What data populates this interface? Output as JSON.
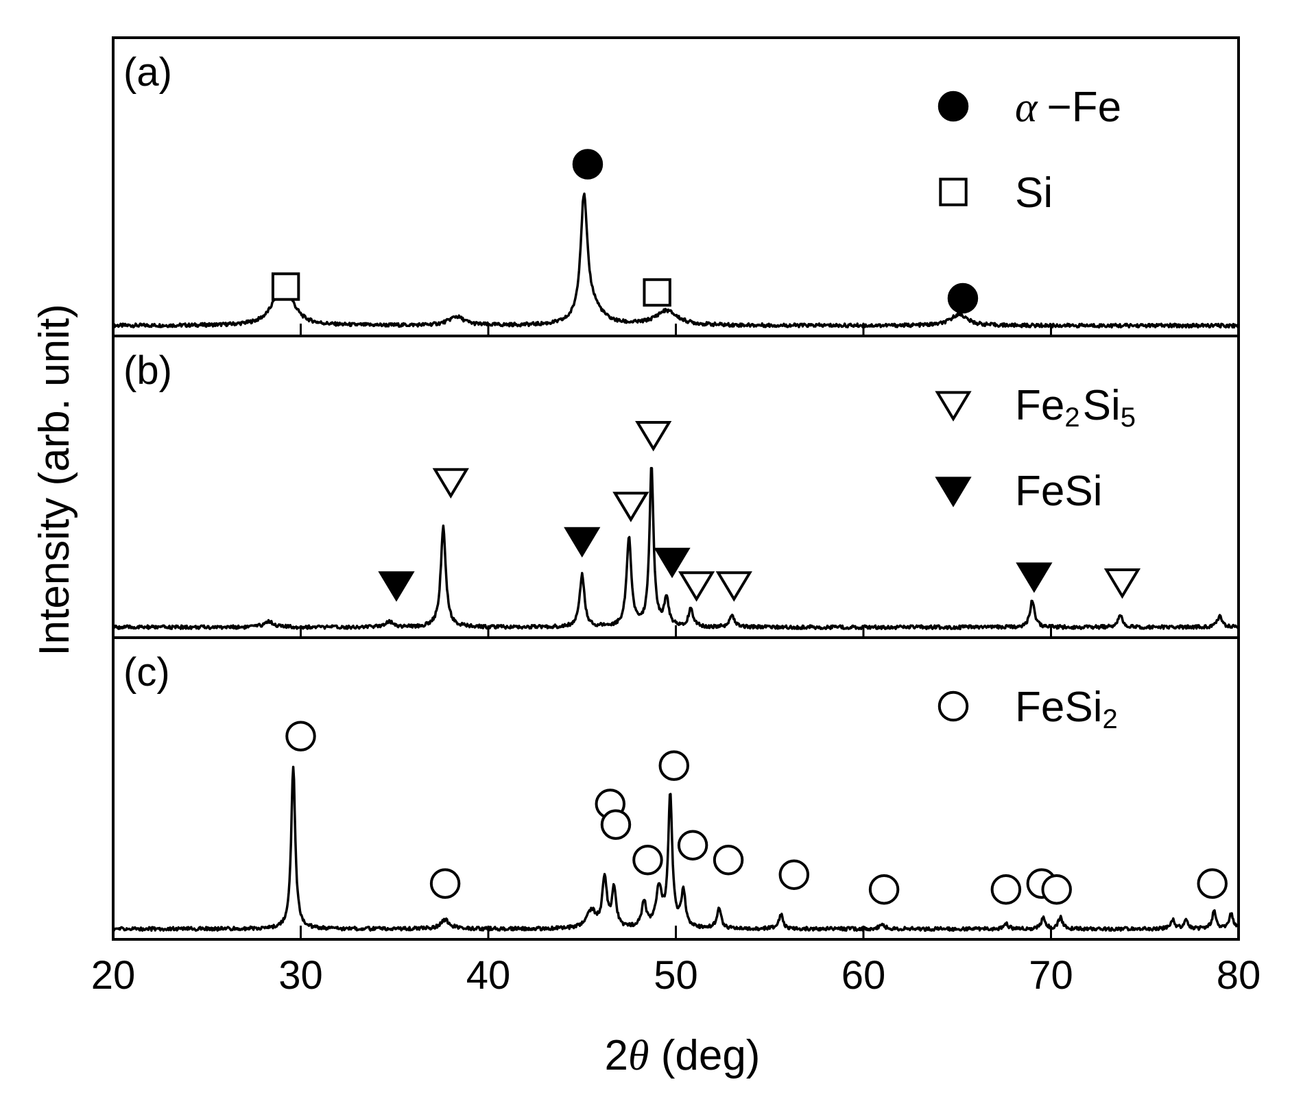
{
  "chart_data": {
    "type": "line",
    "title": "",
    "xlabel_prefix": "2",
    "xlabel_symbol": "θ",
    "xlabel_suffix": " (deg)",
    "ylabel": "Intensity (arb. unit)",
    "xlim": [
      20,
      80
    ],
    "xticks": [
      20,
      30,
      40,
      50,
      60,
      70,
      80
    ],
    "tick_labels": [
      "20",
      "30",
      "40",
      "50",
      "60",
      "70",
      "80"
    ],
    "ylim": [
      0,
      100
    ],
    "grid": false,
    "panels": [
      {
        "id": "a",
        "label": "(a)",
        "baseline": 2,
        "peaks": [
          {
            "x": 28.9,
            "h": 10,
            "w": 0.55
          },
          {
            "x": 29.4,
            "h": 5,
            "w": 0.5
          },
          {
            "x": 38.3,
            "h": 3,
            "w": 0.5
          },
          {
            "x": 45.1,
            "h": 42,
            "w": 0.22
          },
          {
            "x": 45.6,
            "h": 5,
            "w": 0.6
          },
          {
            "x": 49.5,
            "h": 5,
            "w": 0.7
          },
          {
            "x": 65.1,
            "h": 4,
            "w": 0.5
          }
        ],
        "markers": [
          {
            "x": 29.2,
            "y": 16,
            "symbol": "open-square"
          },
          {
            "x": 45.3,
            "y": 58,
            "symbol": "filled-circle"
          },
          {
            "x": 49.0,
            "y": 14,
            "symbol": "open-square"
          },
          {
            "x": 65.3,
            "y": 12,
            "symbol": "filled-circle"
          }
        ],
        "legend": [
          {
            "symbol": "filled-circle",
            "greek": "α",
            "text": "−Fe"
          },
          {
            "symbol": "open-square",
            "text": "Si"
          }
        ]
      },
      {
        "id": "b",
        "label": "(b)",
        "baseline": 2,
        "peaks": [
          {
            "x": 28.3,
            "h": 2,
            "w": 0.3
          },
          {
            "x": 34.7,
            "h": 2,
            "w": 0.25
          },
          {
            "x": 37.6,
            "h": 34,
            "w": 0.16
          },
          {
            "x": 45.0,
            "h": 18,
            "w": 0.15
          },
          {
            "x": 47.5,
            "h": 30,
            "w": 0.15
          },
          {
            "x": 48.7,
            "h": 54,
            "w": 0.13
          },
          {
            "x": 49.5,
            "h": 9,
            "w": 0.15
          },
          {
            "x": 50.8,
            "h": 6,
            "w": 0.15
          },
          {
            "x": 53.0,
            "h": 4,
            "w": 0.15
          },
          {
            "x": 69.0,
            "h": 9,
            "w": 0.15
          },
          {
            "x": 73.7,
            "h": 4,
            "w": 0.15
          },
          {
            "x": 79.0,
            "h": 4,
            "w": 0.15
          }
        ],
        "markers": [
          {
            "x": 35.1,
            "y": 17,
            "symbol": "filled-triangle"
          },
          {
            "x": 38.0,
            "y": 52,
            "symbol": "open-triangle"
          },
          {
            "x": 45.0,
            "y": 32,
            "symbol": "filled-triangle"
          },
          {
            "x": 47.6,
            "y": 44,
            "symbol": "open-triangle"
          },
          {
            "x": 48.8,
            "y": 68,
            "symbol": "open-triangle"
          },
          {
            "x": 49.8,
            "y": 25,
            "symbol": "filled-triangle"
          },
          {
            "x": 51.1,
            "y": 17,
            "symbol": "open-triangle"
          },
          {
            "x": 53.1,
            "y": 17,
            "symbol": "open-triangle"
          },
          {
            "x": 69.1,
            "y": 20,
            "symbol": "filled-triangle"
          },
          {
            "x": 73.8,
            "y": 18,
            "symbol": "open-triangle"
          }
        ],
        "legend": [
          {
            "symbol": "open-triangle",
            "text": "Fe",
            "sub1": "2",
            "text2": "Si",
            "sub2": "5"
          },
          {
            "symbol": "filled-triangle",
            "text": "FeSi"
          }
        ]
      },
      {
        "id": "c",
        "label": "(c)",
        "baseline": 2,
        "peaks": [
          {
            "x": 29.6,
            "h": 55,
            "w": 0.13
          },
          {
            "x": 37.7,
            "h": 3,
            "w": 0.3
          },
          {
            "x": 45.5,
            "h": 6,
            "w": 0.3
          },
          {
            "x": 46.2,
            "h": 17,
            "w": 0.14
          },
          {
            "x": 46.7,
            "h": 13,
            "w": 0.14
          },
          {
            "x": 48.3,
            "h": 9,
            "w": 0.14
          },
          {
            "x": 49.1,
            "h": 13,
            "w": 0.2
          },
          {
            "x": 49.7,
            "h": 45,
            "w": 0.13
          },
          {
            "x": 50.4,
            "h": 12,
            "w": 0.14
          },
          {
            "x": 52.3,
            "h": 7,
            "w": 0.13
          },
          {
            "x": 55.6,
            "h": 5,
            "w": 0.13
          },
          {
            "x": 61.0,
            "h": 2,
            "w": 0.13
          },
          {
            "x": 67.6,
            "h": 2,
            "w": 0.13
          },
          {
            "x": 69.6,
            "h": 4,
            "w": 0.13
          },
          {
            "x": 70.5,
            "h": 4,
            "w": 0.13
          },
          {
            "x": 76.5,
            "h": 3,
            "w": 0.13
          },
          {
            "x": 77.2,
            "h": 3,
            "w": 0.13
          },
          {
            "x": 78.7,
            "h": 6,
            "w": 0.13
          },
          {
            "x": 79.6,
            "h": 5,
            "w": 0.13
          }
        ],
        "markers": [
          {
            "x": 30.0,
            "y": 68,
            "symbol": "open-circle"
          },
          {
            "x": 37.7,
            "y": 18,
            "symbol": "open-circle"
          },
          {
            "x": 46.5,
            "y": 45,
            "symbol": "open-circle"
          },
          {
            "x": 46.8,
            "y": 38,
            "symbol": "open-circle"
          },
          {
            "x": 48.5,
            "y": 26,
            "symbol": "open-circle"
          },
          {
            "x": 49.9,
            "y": 58,
            "symbol": "open-circle"
          },
          {
            "x": 50.9,
            "y": 31,
            "symbol": "open-circle"
          },
          {
            "x": 52.8,
            "y": 26,
            "symbol": "open-circle"
          },
          {
            "x": 56.3,
            "y": 21,
            "symbol": "open-circle"
          },
          {
            "x": 61.1,
            "y": 16,
            "symbol": "open-circle"
          },
          {
            "x": 67.6,
            "y": 16,
            "symbol": "open-circle"
          },
          {
            "x": 69.5,
            "y": 18,
            "symbol": "open-circle"
          },
          {
            "x": 70.3,
            "y": 16,
            "symbol": "open-circle"
          },
          {
            "x": 78.6,
            "y": 18,
            "symbol": "open-circle"
          }
        ],
        "legend": [
          {
            "symbol": "open-circle",
            "text": "FeSi",
            "sub1": "2"
          }
        ]
      }
    ]
  }
}
